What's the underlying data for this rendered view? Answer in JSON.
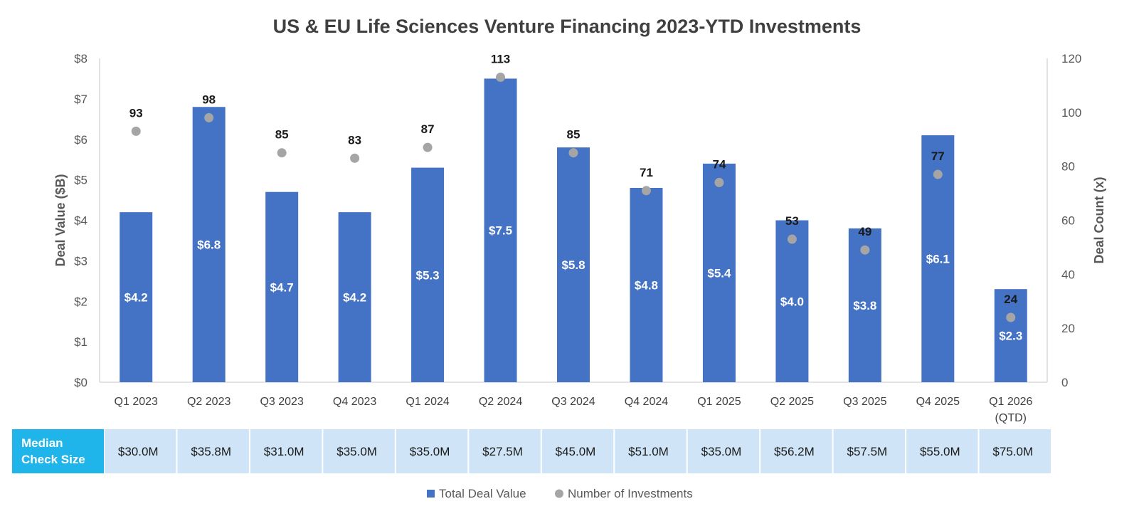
{
  "chart_data": {
    "type": "bar",
    "title": "US & EU Life Sciences Venture Financing 2023-YTD Investments",
    "ylabel": "Deal Value ($B)",
    "y2label": "Deal Count (x)",
    "ylim": [
      0,
      8
    ],
    "y2lim": [
      0,
      120
    ],
    "yticks": [
      "$0",
      "$1",
      "$2",
      "$3",
      "$4",
      "$5",
      "$6",
      "$7",
      "$8"
    ],
    "y2ticks": [
      "0",
      "20",
      "40",
      "60",
      "80",
      "100",
      "120"
    ],
    "categories": [
      [
        "Q1 2023"
      ],
      [
        "Q2 2023"
      ],
      [
        "Q3 2023"
      ],
      [
        "Q4 2023"
      ],
      [
        "Q1 2024"
      ],
      [
        "Q2 2024"
      ],
      [
        "Q3 2024"
      ],
      [
        "Q4 2024"
      ],
      [
        "Q1 2025"
      ],
      [
        "Q2 2025"
      ],
      [
        "Q3 2025"
      ],
      [
        "Q4 2025"
      ],
      [
        "Q1 2026",
        "(QTD)"
      ]
    ],
    "series": [
      {
        "name": "Total Deal Value",
        "kind": "bar",
        "axis": "left",
        "values": [
          4.2,
          6.8,
          4.7,
          4.2,
          5.3,
          7.5,
          5.8,
          4.8,
          5.4,
          4.0,
          3.8,
          6.1,
          2.3
        ],
        "labels": [
          "$4.2",
          "$6.8",
          "$4.7",
          "$4.2",
          "$5.3",
          "$7.5",
          "$5.8",
          "$4.8",
          "$5.4",
          "$4.0",
          "$3.8",
          "$6.1",
          "$2.3"
        ]
      },
      {
        "name": "Number of Investments",
        "kind": "scatter",
        "axis": "right",
        "values": [
          93,
          98,
          85,
          83,
          87,
          113,
          85,
          71,
          74,
          53,
          49,
          77,
          24
        ]
      }
    ],
    "median_check_size": {
      "label": [
        "Median",
        "Check Size"
      ],
      "values": [
        "$30.0M",
        "$35.8M",
        "$31.0M",
        "$35.0M",
        "$35.0M",
        "$27.5M",
        "$45.0M",
        "$51.0M",
        "$35.0M",
        "$56.2M",
        "$57.5M",
        "$55.0M",
        "$75.0M"
      ]
    },
    "legend_position": "bottom",
    "grid": false,
    "colors": {
      "bar": "#4472c4",
      "dot": "#a5a5a5",
      "table_header": "#1fb4ea",
      "table_cell": "#cfe5f7",
      "axis_line": "#d9d9d9"
    }
  }
}
